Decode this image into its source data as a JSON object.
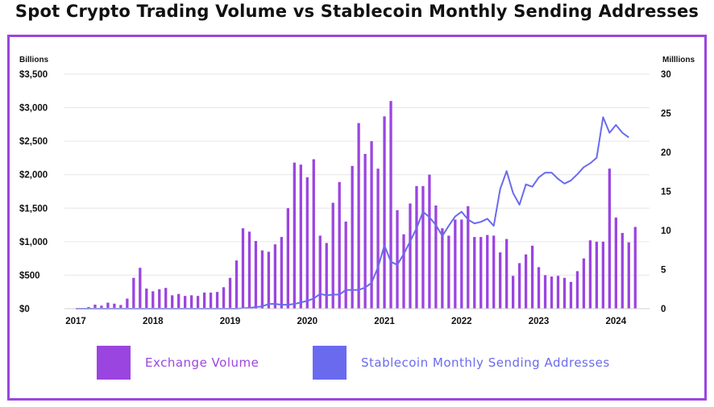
{
  "chart_data": {
    "type": "bar+line",
    "title": "Spot Crypto Trading Volume vs Stablecoin Monthly Sending Addresses",
    "left_axis_unit": "Billions",
    "right_axis_unit": "Milllions",
    "left_ylim": [
      0,
      3500
    ],
    "right_ylim": [
      0,
      30
    ],
    "left_ticks": [
      "$0",
      "$500",
      "$1,000",
      "$1,500",
      "$2,000",
      "$2,500",
      "$3,000",
      "$3,500"
    ],
    "left_tick_values": [
      0,
      500,
      1000,
      1500,
      2000,
      2500,
      3000,
      3500
    ],
    "right_ticks": [
      "0",
      "5",
      "10",
      "15",
      "20",
      "25",
      "30"
    ],
    "right_tick_values": [
      0,
      5,
      10,
      15,
      20,
      25,
      30
    ],
    "x_ticks": [
      "2017",
      "2018",
      "2019",
      "2020",
      "2021",
      "2022",
      "2023",
      "2024"
    ],
    "x_tick_month_index": [
      0,
      12,
      24,
      36,
      48,
      60,
      72,
      84
    ],
    "months_start": "2017-01",
    "gridlines": true,
    "series": [
      {
        "name": "Exchange Volume",
        "type": "bar",
        "axis": "left",
        "color": "#9b45e0",
        "values": [
          5,
          10,
          25,
          60,
          45,
          90,
          75,
          55,
          150,
          460,
          610,
          300,
          260,
          290,
          310,
          200,
          220,
          190,
          200,
          190,
          240,
          240,
          250,
          320,
          460,
          720,
          1200,
          1150,
          1010,
          870,
          850,
          960,
          1070,
          1500,
          2180,
          2150,
          1960,
          2230,
          1090,
          980,
          1580,
          1890,
          1300,
          2130,
          2770,
          2310,
          2500,
          2090,
          2870,
          3100,
          1470,
          1110,
          1570,
          1830,
          1830,
          2000,
          1540,
          1200,
          1090,
          1330,
          1330,
          1530,
          1070,
          1070,
          1100,
          1090,
          840,
          1040,
          490,
          680,
          810,
          940,
          620,
          500,
          480,
          490,
          460,
          400,
          560,
          750,
          1020,
          1000,
          1000,
          2090,
          1360,
          1130,
          990,
          1220
        ]
      },
      {
        "name": "Stablecoin Monthly Sending Addresses",
        "type": "line",
        "axis": "right",
        "color": "#6a6aef",
        "values": [
          0.0,
          0.0,
          0.0,
          0.0,
          0.0,
          0.0,
          0.0,
          0.0,
          0.0,
          0.0,
          0.0,
          0.0,
          0.0,
          0.0,
          0.0,
          0.0,
          0.0,
          0.0,
          0.0,
          0.0,
          0.0,
          0.0,
          0.0,
          0.0,
          0.0,
          0.0,
          0.05,
          0.1,
          0.2,
          0.3,
          0.6,
          0.6,
          0.5,
          0.5,
          0.6,
          0.8,
          1.0,
          1.3,
          1.9,
          1.7,
          1.8,
          1.8,
          2.4,
          2.4,
          2.4,
          2.7,
          3.3,
          5.3,
          8.1,
          6.0,
          5.6,
          7.0,
          8.6,
          10.3,
          12.4,
          11.7,
          10.7,
          9.3,
          10.6,
          11.8,
          12.4,
          11.4,
          10.9,
          11.1,
          11.5,
          10.6,
          15.3,
          17.6,
          14.8,
          13.3,
          15.9,
          15.6,
          16.8,
          17.4,
          17.4,
          16.6,
          16.0,
          16.4,
          17.2,
          18.1,
          18.6,
          19.3,
          24.5,
          22.5,
          23.5,
          22.5,
          21.9
        ]
      }
    ]
  },
  "legend": [
    {
      "label": "Exchange Volume",
      "color": "#9b45e0"
    },
    {
      "label": "Stablecoin Monthly Sending Addresses",
      "color": "#6a6aef"
    }
  ]
}
